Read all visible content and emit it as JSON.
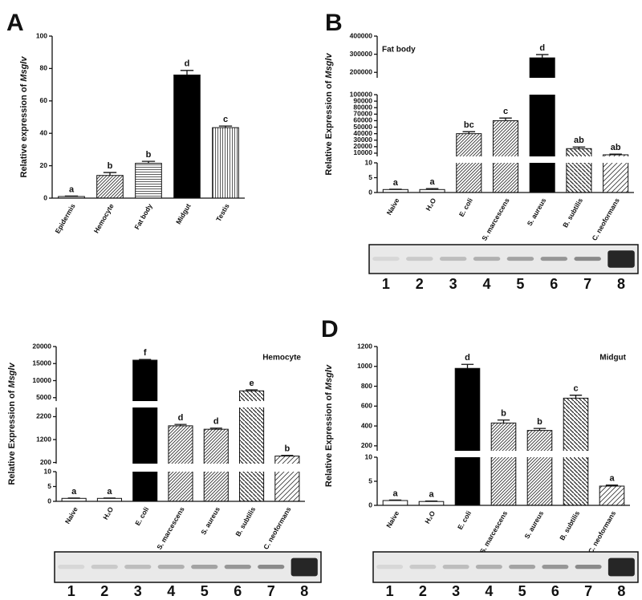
{
  "chart_data": [
    {
      "type": "bar",
      "panel": "A",
      "ylabel": "Relative expression of",
      "ylabel_gene": "Msglv",
      "categories": [
        "Epidermis",
        "Hemocyte",
        "Fat body",
        "Midgut",
        "Testis"
      ],
      "values": [
        1,
        14,
        21.5,
        76,
        43.5
      ],
      "errors": [
        0.3,
        1.8,
        1.2,
        2.8,
        1
      ],
      "letters": [
        "a",
        "b",
        "b",
        "d",
        "c"
      ],
      "fills": [
        "white",
        "diag",
        "hlines",
        "black",
        "vlines"
      ],
      "segments": [
        {
          "ylim": [
            0,
            100
          ],
          "yticks": [
            0,
            20,
            40,
            60,
            80,
            100
          ]
        }
      ]
    },
    {
      "type": "bar",
      "panel": "B",
      "subtitle": "Fat body",
      "ylabel": "Relative Expression of",
      "ylabel_gene": "Msglv",
      "categories": [
        "Naive",
        "H₂O",
        "E. coli",
        "S. marcescens",
        "S. aureus",
        "B. subtilis",
        "C. neoformans"
      ],
      "values": [
        1,
        1,
        40000,
        60000,
        280000,
        17000,
        7500
      ],
      "errors": [
        0.1,
        0.3,
        3000,
        4000,
        18000,
        2500,
        1000
      ],
      "letters": [
        "a",
        "a",
        "bc",
        "c",
        "d",
        "ab",
        "ab"
      ],
      "fills": [
        "white",
        "white",
        "diag",
        "diag",
        "black",
        "diag2",
        "diag3"
      ],
      "segments": [
        {
          "ylim": [
            0,
            10
          ],
          "yticks": [
            0,
            5,
            10
          ]
        },
        {
          "ylim": [
            5000,
            100000
          ],
          "yticks": [
            10000,
            20000,
            30000,
            40000,
            50000,
            60000,
            70000,
            80000,
            90000,
            100000
          ]
        },
        {
          "ylim": [
            170000,
            400000
          ],
          "yticks": [
            200000,
            300000,
            400000
          ]
        }
      ],
      "blot_lanes": [
        "1",
        "2",
        "3",
        "4",
        "5",
        "6",
        "7",
        "8"
      ]
    },
    {
      "type": "bar",
      "subtitle": "Hemocyte",
      "ylabel": "Relative Expression of",
      "ylabel_gene": "Msglv",
      "categories": [
        "Naive",
        "H₂O",
        "E. coli",
        "S. marcescens",
        "S. aureus",
        "B. subtilis",
        "C. neoformans"
      ],
      "values": [
        1,
        1,
        16000,
        1800,
        1650,
        7000,
        480
      ],
      "errors": [
        0.1,
        0.1,
        200,
        60,
        50,
        300,
        30
      ],
      "letters": [
        "a",
        "a",
        "f",
        "d",
        "d",
        "e",
        "b"
      ],
      "fills": [
        "white",
        "white",
        "black",
        "diag",
        "diag",
        "diag2",
        "diag3"
      ],
      "segments": [
        {
          "ylim": [
            0,
            10
          ],
          "yticks": [
            0,
            5,
            10
          ]
        },
        {
          "ylim": [
            150,
            2600
          ],
          "yticks": [
            200,
            1200,
            2200
          ]
        },
        {
          "ylim": [
            4000,
            20000
          ],
          "yticks": [
            5000,
            10000,
            15000,
            20000
          ]
        }
      ],
      "blot_lanes": [
        "1",
        "2",
        "3",
        "4",
        "5",
        "6",
        "7",
        "8"
      ]
    },
    {
      "type": "bar",
      "panel": "D",
      "subtitle": "Midgut",
      "ylabel": "Relative Expression of",
      "ylabel_gene": "Msglv",
      "categories": [
        "Naive",
        "H₂O",
        "E. coli",
        "S. marcescens",
        "S. aureus",
        "B. subtilis",
        "C. neoformans"
      ],
      "values": [
        1,
        0.8,
        980,
        430,
        355,
        680,
        4
      ],
      "errors": [
        0.1,
        0.1,
        40,
        30,
        20,
        30,
        0.2
      ],
      "letters": [
        "a",
        "a",
        "d",
        "b",
        "b",
        "c",
        "a"
      ],
      "fills": [
        "white",
        "white",
        "black",
        "diag",
        "diag",
        "diag2",
        "diag3"
      ],
      "segments": [
        {
          "ylim": [
            0,
            10
          ],
          "yticks": [
            0,
            5,
            10
          ]
        },
        {
          "ylim": [
            150,
            1200
          ],
          "yticks": [
            200,
            400,
            600,
            800,
            1000,
            1200
          ]
        }
      ],
      "blot_lanes": [
        "1",
        "2",
        "3",
        "4",
        "5",
        "6",
        "7",
        "8"
      ]
    }
  ]
}
